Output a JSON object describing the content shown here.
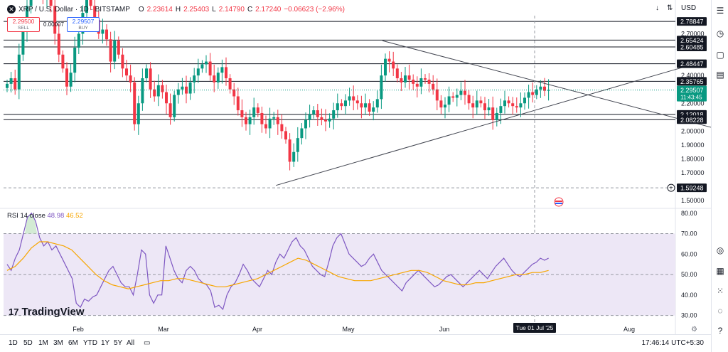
{
  "header": {
    "symbol_icon": "x-icon",
    "symbol_title": "XRP / U.S. Dollar · 1D · BITSTAMP",
    "ohlc": {
      "o_label": "O",
      "o": "2.23614",
      "h_label": "H",
      "h": "2.25403",
      "l_label": "L",
      "l": "2.14790",
      "c_label": "C",
      "c": "2.17240",
      "chg": "−0.06623 (−2.96%)"
    },
    "currency": "USD"
  },
  "trade": {
    "sell_price": "2.29500",
    "sell_label": "SELL",
    "buy_price": "2.29507",
    "buy_label": "BUY",
    "spread": "0.00007"
  },
  "rsi_legend": {
    "name": "RSI 14 close",
    "v1": "48.98",
    "v2": "46.52"
  },
  "logo": {
    "text": "TradingView"
  },
  "timeframes": [
    "1D",
    "5D",
    "1M",
    "3M",
    "6M",
    "YTD",
    "1Y",
    "5Y",
    "All"
  ],
  "footer": {
    "clock": "17:46:14 UTC+5:30"
  },
  "colors": {
    "up": "#089981",
    "down": "#f23645",
    "rsi": "#7e57c2",
    "rsi_ma": "#f7a600",
    "rsi_band": "#ede7f6",
    "accent": "#2962ff"
  },
  "chart_data": {
    "type": "candlestick",
    "x_axis_labels": [
      "Feb",
      "Mar",
      "Apr",
      "May",
      "Jun",
      "Jul",
      "Aug"
    ],
    "crosshair_label": "Tue 01 Jul '25",
    "y_ticks": [
      "2.70000",
      "2.40000",
      "2.20000",
      "2.00000",
      "1.90000",
      "1.80000",
      "1.70000",
      "1.50000"
    ],
    "ylim": [
      1.45,
      2.83
    ],
    "level_labels": [
      {
        "value": 2.78847,
        "label": "2.78847"
      },
      {
        "value": 2.65424,
        "label": "2.65424"
      },
      {
        "value": 2.60485,
        "label": "2.60485"
      },
      {
        "value": 2.48447,
        "label": "2.48447"
      },
      {
        "value": 2.35765,
        "label": "2.35765"
      },
      {
        "value": 2.12018,
        "label": "2.12018"
      },
      {
        "value": 2.08228,
        "label": "2.08228"
      }
    ],
    "price_label": {
      "value": 2.29507,
      "label": "2.29507",
      "countdown": "11:43:45"
    },
    "crosshair_price": {
      "value": 1.59248,
      "label": "1.59248"
    },
    "last_candle": {
      "open": 2.23614,
      "high": 2.25403,
      "low": 2.1479,
      "close": 2.1724
    },
    "triangle": {
      "upper": [
        {
          "date": "2025-05-12",
          "price": 2.65
        },
        {
          "date": "2025-08-31",
          "price": 2.01
        }
      ],
      "lower": [
        {
          "date": "2025-04-07",
          "price": 1.61
        },
        {
          "date": "2025-07-20",
          "price": 2.27
        }
      ]
    },
    "closes": [
      2.34,
      2.38,
      2.3,
      2.55,
      2.72,
      2.9,
      3.0,
      3.08,
      3.1,
      2.95,
      3.0,
      2.9,
      2.7,
      2.55,
      2.45,
      2.32,
      2.42,
      2.6,
      2.7,
      2.85,
      2.95,
      2.9,
      2.8,
      2.7,
      2.73,
      2.66,
      2.5,
      2.65,
      2.55,
      2.45,
      2.4,
      2.35,
      2.05,
      2.2,
      2.38,
      2.45,
      2.3,
      2.25,
      2.33,
      2.28,
      2.2,
      2.1,
      2.26,
      2.3,
      2.32,
      2.27,
      2.35,
      2.4,
      2.45,
      2.48,
      2.5,
      2.4,
      2.35,
      2.42,
      2.46,
      2.38,
      2.3,
      2.25,
      2.15,
      2.1,
      2.05,
      2.1,
      2.17,
      2.13,
      2.05,
      2.02,
      2.09,
      2.1,
      2.05,
      2.0,
      1.94,
      1.78,
      1.85,
      1.95,
      2.02,
      2.08,
      2.12,
      2.15,
      2.1,
      2.08,
      2.07,
      2.09,
      2.15,
      2.2,
      2.18,
      2.22,
      2.25,
      2.22,
      2.2,
      2.17,
      2.2,
      2.14,
      2.17,
      2.23,
      2.4,
      2.52,
      2.5,
      2.45,
      2.38,
      2.35,
      2.4,
      2.37,
      2.34,
      2.32,
      2.38,
      2.37,
      2.34,
      2.3,
      2.22,
      2.17,
      2.19,
      2.25,
      2.24,
      2.26,
      2.29,
      2.26,
      2.2,
      2.17,
      2.22,
      2.2,
      2.15,
      2.17,
      2.08,
      2.13,
      2.18,
      2.22,
      2.2,
      2.18,
      2.17,
      2.2,
      2.24,
      2.28,
      2.26,
      2.3,
      2.32,
      2.29,
      2.295
    ],
    "rsi": {
      "name": "RSI 14 close",
      "ylim": [
        25,
        82
      ],
      "y_ticks": [
        80,
        70,
        60,
        50,
        40,
        30
      ],
      "band": [
        30,
        70
      ],
      "midline": 50,
      "rsi_values": [
        55,
        52,
        58,
        62,
        70,
        78,
        80,
        76,
        68,
        64,
        66,
        62,
        64,
        60,
        56,
        52,
        48,
        36,
        34,
        38,
        37,
        39,
        40,
        44,
        48,
        52,
        54,
        50,
        46,
        44,
        44,
        40,
        50,
        62,
        60,
        40,
        36,
        40,
        40,
        64,
        58,
        52,
        48,
        46,
        52,
        54,
        52,
        48,
        46,
        45,
        42,
        34,
        35,
        33,
        40,
        44,
        46,
        50,
        55,
        52,
        48,
        46,
        44,
        48,
        52,
        50,
        56,
        60,
        58,
        62,
        66,
        68,
        64,
        62,
        58,
        54,
        52,
        50,
        49,
        56,
        64,
        68,
        70,
        65,
        60,
        58,
        56,
        54,
        55,
        58,
        60,
        56,
        52,
        50,
        48,
        46,
        44,
        42,
        46,
        48,
        50,
        52,
        50,
        48,
        46,
        44,
        45,
        47,
        49,
        50,
        48,
        46,
        44,
        46,
        48,
        50,
        52,
        50,
        48,
        51,
        54,
        56,
        58,
        55,
        52,
        50,
        49,
        51,
        53,
        55,
        56,
        58,
        57,
        58
      ],
      "ma_values": [
        52,
        54,
        58,
        63,
        66,
        66,
        65,
        64,
        62,
        58,
        54,
        50,
        47,
        45,
        44,
        43,
        44,
        45,
        46,
        47,
        47,
        48,
        48,
        47,
        46,
        45,
        44,
        44,
        45,
        46,
        47,
        48,
        50,
        52,
        54,
        56,
        58,
        57,
        55,
        53,
        51,
        49,
        48,
        47,
        47,
        47,
        48,
        49,
        50,
        51,
        52,
        52,
        51,
        49,
        47,
        46,
        45,
        45,
        46,
        46,
        47,
        48,
        49,
        50,
        50,
        51,
        51,
        52
      ]
    }
  }
}
